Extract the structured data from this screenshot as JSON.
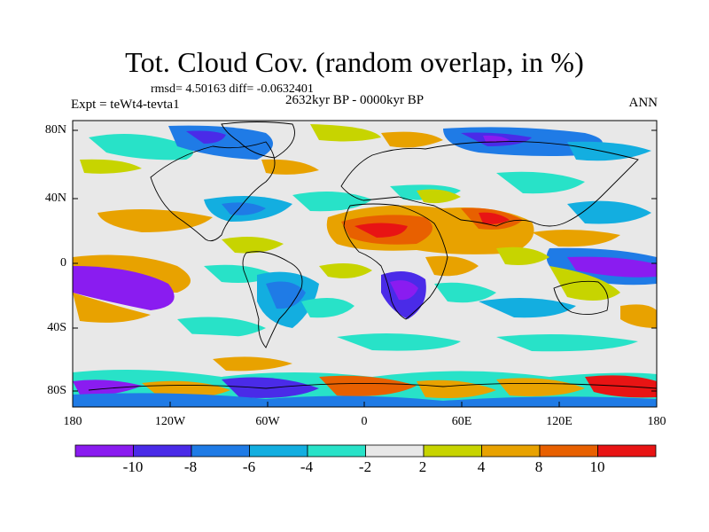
{
  "title": "Tot. Cloud Cov. (random overlap, in %)",
  "stats": "rmsd= 4.50163 diff= -0.0632401",
  "experiment": "Expt = teWt4-tevta1",
  "period": "2632kyr BP - 0000kyr BP",
  "season": "ANN",
  "lat_ticks": [
    "80N",
    "40N",
    "0",
    "40S",
    "80S"
  ],
  "lon_ticks": [
    "180",
    "120W",
    "60W",
    "0",
    "60E",
    "120E",
    "180"
  ],
  "colorbar": {
    "labels": [
      "-10",
      "-8",
      "-6",
      "-4",
      "-2",
      "2",
      "4",
      "8",
      "10"
    ],
    "colors": [
      "#8a1cf0",
      "#4a2be8",
      "#1f7be6",
      "#13aee0",
      "#28e2c8",
      "#e8e8e8",
      "#c7d400",
      "#e8a200",
      "#e86000",
      "#e81414"
    ]
  },
  "colors": {
    "background_field": "#e8e8e8",
    "coastline": "#000000"
  }
}
